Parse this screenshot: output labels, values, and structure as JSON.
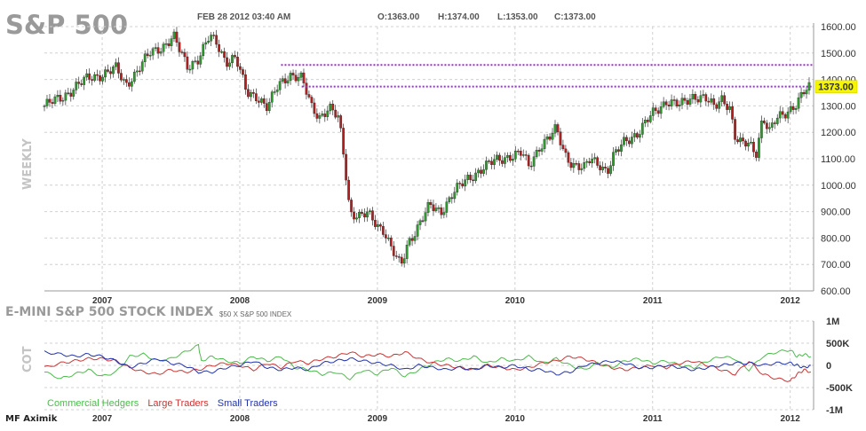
{
  "header": {
    "title": "S&P 500",
    "date": "FEB 28 2012 03:40 AM",
    "open": "O:1363.00",
    "high": "H:1374.00",
    "low": "L:1353.00",
    "close": "C:1373.00",
    "side_label": "WEEKLY"
  },
  "lower_panel": {
    "title": "E-MINI S&P 500 STOCK INDEX",
    "subtitle": "$50 X S&P 500 INDEX",
    "side_label": "COT"
  },
  "footer": {
    "logo": "MF Aximik"
  },
  "colors": {
    "up": "#2e9a2e",
    "down": "#b02020",
    "hline": "#9933cc",
    "price_box": "#f5f500",
    "commercial": "#4dbb4d",
    "large": "#cc3333",
    "small": "#2233aa",
    "grid": "#d0d0d0"
  },
  "chart_data": [
    {
      "type": "candlestick",
      "title": "S&P 500",
      "period": "WEEKLY",
      "ylim": [
        600,
        1600
      ],
      "yticks": [
        "1600.00",
        "1500.00",
        "1400.00",
        "1300.00",
        "1200.00",
        "1100.00",
        "1000.00",
        "900.00",
        "800.00",
        "700.00",
        "600.00"
      ],
      "ytick_values": [
        1600,
        1500,
        1400,
        1300,
        1200,
        1100,
        1000,
        900,
        800,
        700,
        600
      ],
      "xlim": [
        2006.58,
        2012.17
      ],
      "xticks": [
        "2007",
        "2008",
        "2009",
        "2010",
        "2011",
        "2012"
      ],
      "xtick_values": [
        2007.0,
        2008.0,
        2009.0,
        2010.0,
        2011.0,
        2012.0
      ],
      "last_price": "1373.00",
      "horizontal_lines": [
        {
          "x_start": 2008.3,
          "x_end": 2012.17,
          "y": 1455
        },
        {
          "x_start": 2008.45,
          "x_end": 2012.17,
          "y": 1373
        }
      ],
      "close_path": [
        [
          2006.58,
          1300
        ],
        [
          2006.7,
          1330
        ],
        [
          2006.8,
          1370
        ],
        [
          2006.9,
          1405
        ],
        [
          2007.0,
          1420
        ],
        [
          2007.1,
          1440
        ],
        [
          2007.17,
          1380
        ],
        [
          2007.25,
          1430
        ],
        [
          2007.35,
          1500
        ],
        [
          2007.45,
          1530
        ],
        [
          2007.52,
          1560
        ],
        [
          2007.57,
          1500
        ],
        [
          2007.62,
          1450
        ],
        [
          2007.7,
          1480
        ],
        [
          2007.78,
          1560
        ],
        [
          2007.83,
          1540
        ],
        [
          2007.9,
          1470
        ],
        [
          2007.97,
          1480
        ],
        [
          2008.05,
          1350
        ],
        [
          2008.12,
          1340
        ],
        [
          2008.2,
          1290
        ],
        [
          2008.28,
          1380
        ],
        [
          2008.36,
          1420
        ],
        [
          2008.45,
          1400
        ],
        [
          2008.52,
          1300
        ],
        [
          2008.58,
          1260
        ],
        [
          2008.65,
          1290
        ],
        [
          2008.72,
          1250
        ],
        [
          2008.76,
          1100
        ],
        [
          2008.8,
          900
        ],
        [
          2008.87,
          880
        ],
        [
          2008.93,
          890
        ],
        [
          2009.0,
          850
        ],
        [
          2009.05,
          830
        ],
        [
          2009.1,
          760
        ],
        [
          2009.17,
          690
        ],
        [
          2009.22,
          780
        ],
        [
          2009.3,
          850
        ],
        [
          2009.38,
          920
        ],
        [
          2009.46,
          900
        ],
        [
          2009.55,
          970
        ],
        [
          2009.65,
          1020
        ],
        [
          2009.75,
          1060
        ],
        [
          2009.85,
          1090
        ],
        [
          2009.95,
          1110
        ],
        [
          2010.05,
          1120
        ],
        [
          2010.1,
          1070
        ],
        [
          2010.18,
          1150
        ],
        [
          2010.25,
          1180
        ],
        [
          2010.3,
          1210
        ],
        [
          2010.36,
          1120
        ],
        [
          2010.42,
          1080
        ],
        [
          2010.5,
          1060
        ],
        [
          2010.55,
          1100
        ],
        [
          2010.62,
          1080
        ],
        [
          2010.67,
          1050
        ],
        [
          2010.72,
          1110
        ],
        [
          2010.8,
          1170
        ],
        [
          2010.9,
          1200
        ],
        [
          2011.0,
          1270
        ],
        [
          2011.1,
          1320
        ],
        [
          2011.2,
          1300
        ],
        [
          2011.3,
          1340
        ],
        [
          2011.38,
          1330
        ],
        [
          2011.45,
          1290
        ],
        [
          2011.5,
          1330
        ],
        [
          2011.56,
          1300
        ],
        [
          2011.6,
          1180
        ],
        [
          2011.65,
          1150
        ],
        [
          2011.7,
          1160
        ],
        [
          2011.75,
          1120
        ],
        [
          2011.8,
          1260
        ],
        [
          2011.85,
          1200
        ],
        [
          2011.9,
          1250
        ],
        [
          2011.95,
          1270
        ],
        [
          2012.0,
          1290
        ],
        [
          2012.05,
          1310
        ],
        [
          2012.1,
          1350
        ],
        [
          2012.15,
          1373
        ]
      ]
    },
    {
      "type": "line",
      "title": "E-MINI S&P 500 STOCK INDEX",
      "ylabel": "COT",
      "ylim": [
        -1000000,
        1000000
      ],
      "yticks": [
        "1M",
        "500K",
        "0",
        "-500K",
        "-1M"
      ],
      "ytick_values": [
        1000000,
        500000,
        0,
        -500000,
        -1000000
      ],
      "xlim": [
        2006.58,
        2012.17
      ],
      "xticks": [
        "2007",
        "2008",
        "2009",
        "2010",
        "2011",
        "2012"
      ],
      "xtick_values": [
        2007.0,
        2008.0,
        2009.0,
        2010.0,
        2011.0,
        2012.0
      ],
      "series": [
        {
          "name": "Commercial Hedgers",
          "color_key": "commercial",
          "points": [
            [
              2006.58,
              -150000
            ],
            [
              2006.7,
              -300000
            ],
            [
              2006.8,
              -200000
            ],
            [
              2006.9,
              -100000
            ],
            [
              2007.0,
              -250000
            ],
            [
              2007.1,
              -150000
            ],
            [
              2007.2,
              200000
            ],
            [
              2007.3,
              250000
            ],
            [
              2007.4,
              100000
            ],
            [
              2007.5,
              150000
            ],
            [
              2007.6,
              300000
            ],
            [
              2007.7,
              450000
            ],
            [
              2007.72,
              100000
            ],
            [
              2007.8,
              200000
            ],
            [
              2007.9,
              100000
            ],
            [
              2008.0,
              50000
            ],
            [
              2008.1,
              200000
            ],
            [
              2008.2,
              100000
            ],
            [
              2008.3,
              200000
            ],
            [
              2008.4,
              -50000
            ],
            [
              2008.5,
              -100000
            ],
            [
              2008.6,
              -200000
            ],
            [
              2008.7,
              -150000
            ],
            [
              2008.8,
              -300000
            ],
            [
              2008.9,
              -100000
            ],
            [
              2009.0,
              -200000
            ],
            [
              2009.1,
              -50000
            ],
            [
              2009.2,
              -250000
            ],
            [
              2009.3,
              -100000
            ],
            [
              2009.4,
              50000
            ],
            [
              2009.5,
              150000
            ],
            [
              2009.6,
              100000
            ],
            [
              2009.7,
              200000
            ],
            [
              2009.8,
              50000
            ],
            [
              2009.9,
              150000
            ],
            [
              2010.0,
              100000
            ],
            [
              2010.1,
              200000
            ],
            [
              2010.2,
              50000
            ],
            [
              2010.3,
              150000
            ],
            [
              2010.4,
              0
            ],
            [
              2010.5,
              -100000
            ],
            [
              2010.6,
              50000
            ],
            [
              2010.7,
              -50000
            ],
            [
              2010.8,
              100000
            ],
            [
              2010.9,
              150000
            ],
            [
              2011.0,
              50000
            ],
            [
              2011.1,
              100000
            ],
            [
              2011.2,
              0
            ],
            [
              2011.3,
              -50000
            ],
            [
              2011.4,
              100000
            ],
            [
              2011.5,
              200000
            ],
            [
              2011.6,
              150000
            ],
            [
              2011.7,
              -100000
            ],
            [
              2011.8,
              200000
            ],
            [
              2011.9,
              300000
            ],
            [
              2012.0,
              350000
            ],
            [
              2012.05,
              200000
            ],
            [
              2012.1,
              250000
            ],
            [
              2012.15,
              200000
            ]
          ]
        },
        {
          "name": "Large Traders",
          "color_key": "large",
          "points": [
            [
              2006.58,
              -50000
            ],
            [
              2006.7,
              50000
            ],
            [
              2006.8,
              100000
            ],
            [
              2006.9,
              150000
            ],
            [
              2007.0,
              150000
            ],
            [
              2007.1,
              100000
            ],
            [
              2007.2,
              -50000
            ],
            [
              2007.3,
              -150000
            ],
            [
              2007.4,
              -200000
            ],
            [
              2007.5,
              -100000
            ],
            [
              2007.6,
              -150000
            ],
            [
              2007.7,
              -100000
            ],
            [
              2007.8,
              0
            ],
            [
              2007.9,
              50000
            ],
            [
              2008.0,
              0
            ],
            [
              2008.1,
              -100000
            ],
            [
              2008.2,
              50000
            ],
            [
              2008.3,
              -50000
            ],
            [
              2008.4,
              100000
            ],
            [
              2008.5,
              50000
            ],
            [
              2008.6,
              150000
            ],
            [
              2008.7,
              200000
            ],
            [
              2008.8,
              300000
            ],
            [
              2008.9,
              200000
            ],
            [
              2009.0,
              250000
            ],
            [
              2009.1,
              200000
            ],
            [
              2009.2,
              300000
            ],
            [
              2009.3,
              150000
            ],
            [
              2009.4,
              50000
            ],
            [
              2009.5,
              0
            ],
            [
              2009.6,
              -50000
            ],
            [
              2009.7,
              -100000
            ],
            [
              2009.8,
              0
            ],
            [
              2009.9,
              -50000
            ],
            [
              2010.0,
              -100000
            ],
            [
              2010.1,
              -50000
            ],
            [
              2010.2,
              50000
            ],
            [
              2010.3,
              100000
            ],
            [
              2010.4,
              200000
            ],
            [
              2010.5,
              150000
            ],
            [
              2010.6,
              50000
            ],
            [
              2010.7,
              -50000
            ],
            [
              2010.8,
              -100000
            ],
            [
              2010.9,
              -50000
            ],
            [
              2011.0,
              0
            ],
            [
              2011.1,
              -50000
            ],
            [
              2011.2,
              50000
            ],
            [
              2011.3,
              100000
            ],
            [
              2011.4,
              0
            ],
            [
              2011.5,
              -100000
            ],
            [
              2011.6,
              -200000
            ],
            [
              2011.7,
              100000
            ],
            [
              2011.8,
              -200000
            ],
            [
              2011.9,
              -300000
            ],
            [
              2012.0,
              -350000
            ],
            [
              2012.05,
              -200000
            ],
            [
              2012.1,
              -100000
            ],
            [
              2012.15,
              -150000
            ]
          ]
        },
        {
          "name": "Small Traders",
          "color_key": "small",
          "points": [
            [
              2006.58,
              300000
            ],
            [
              2006.7,
              250000
            ],
            [
              2006.8,
              200000
            ],
            [
              2006.9,
              250000
            ],
            [
              2007.0,
              200000
            ],
            [
              2007.1,
              100000
            ],
            [
              2007.2,
              -50000
            ],
            [
              2007.3,
              50000
            ],
            [
              2007.4,
              150000
            ],
            [
              2007.5,
              50000
            ],
            [
              2007.6,
              0
            ],
            [
              2007.7,
              -150000
            ],
            [
              2007.8,
              -150000
            ],
            [
              2007.9,
              -50000
            ],
            [
              2008.0,
              0
            ],
            [
              2008.1,
              100000
            ],
            [
              2008.2,
              -50000
            ],
            [
              2008.3,
              -100000
            ],
            [
              2008.4,
              -50000
            ],
            [
              2008.5,
              -100000
            ],
            [
              2008.6,
              50000
            ],
            [
              2008.7,
              100000
            ],
            [
              2008.8,
              150000
            ],
            [
              2008.9,
              100000
            ],
            [
              2009.0,
              50000
            ],
            [
              2009.1,
              0
            ],
            [
              2009.2,
              -100000
            ],
            [
              2009.3,
              0
            ],
            [
              2009.4,
              -50000
            ],
            [
              2009.5,
              -100000
            ],
            [
              2009.6,
              -50000
            ],
            [
              2009.7,
              -100000
            ],
            [
              2009.8,
              0
            ],
            [
              2009.9,
              -50000
            ],
            [
              2010.0,
              0
            ],
            [
              2010.1,
              -100000
            ],
            [
              2010.2,
              -100000
            ],
            [
              2010.3,
              -200000
            ],
            [
              2010.4,
              -150000
            ],
            [
              2010.5,
              0
            ],
            [
              2010.6,
              50000
            ],
            [
              2010.7,
              100000
            ],
            [
              2010.8,
              50000
            ],
            [
              2010.9,
              -50000
            ],
            [
              2011.0,
              -50000
            ],
            [
              2011.1,
              0
            ],
            [
              2011.2,
              -50000
            ],
            [
              2011.3,
              -100000
            ],
            [
              2011.4,
              -50000
            ],
            [
              2011.5,
              0
            ],
            [
              2011.6,
              50000
            ],
            [
              2011.7,
              50000
            ],
            [
              2011.8,
              0
            ],
            [
              2011.9,
              50000
            ],
            [
              2012.0,
              50000
            ],
            [
              2012.05,
              0
            ],
            [
              2012.1,
              -50000
            ],
            [
              2012.15,
              0
            ]
          ]
        }
      ]
    }
  ]
}
